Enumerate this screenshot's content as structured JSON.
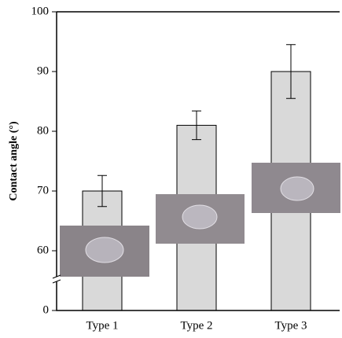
{
  "chart_data": {
    "type": "bar",
    "ylabel": "Contact angle (°)",
    "categories": [
      "Type 1",
      "Type 2",
      "Type 3"
    ],
    "values": [
      70,
      81,
      90
    ],
    "errors": [
      2.6,
      2.4,
      4.5
    ],
    "color": "#d9d9d9",
    "ylim": [
      0,
      100
    ],
    "ybreak": [
      0,
      50
    ],
    "yticks": [
      0,
      60,
      70,
      80,
      90,
      100
    ]
  }
}
